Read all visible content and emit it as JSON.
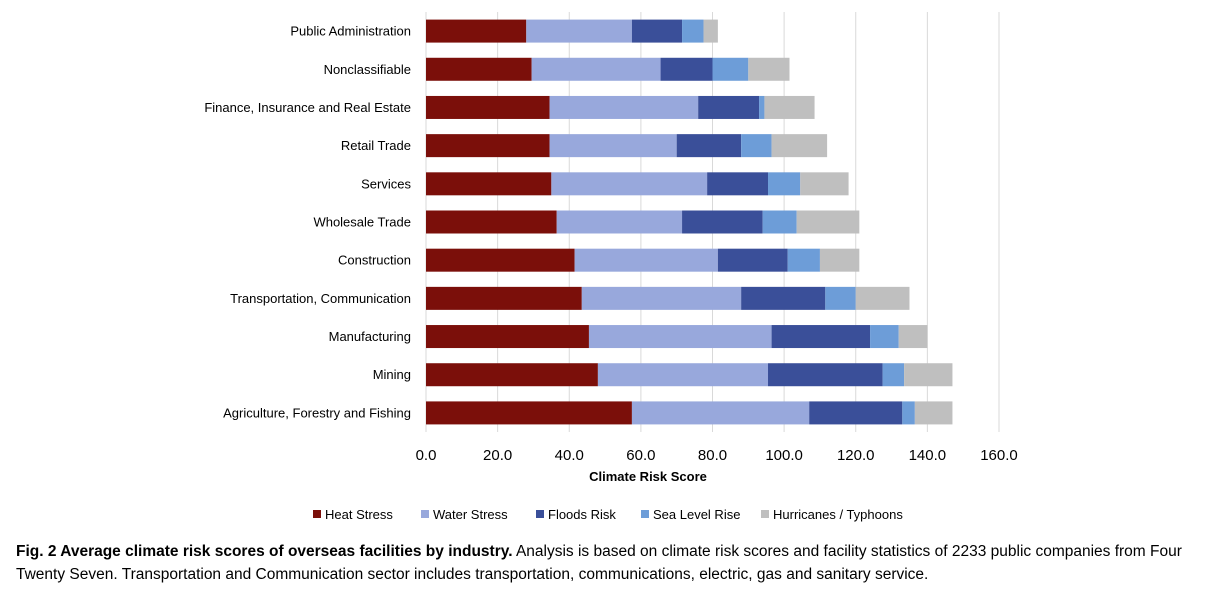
{
  "chart_data": {
    "type": "bar",
    "orientation": "horizontal",
    "stacked": true,
    "categories": [
      "Public Administration",
      "Nonclassifiable",
      "Finance, Insurance and Real Estate",
      "Retail Trade",
      "Services",
      "Wholesale Trade",
      "Construction",
      "Transportation, Communication",
      "Manufacturing",
      "Mining",
      "Agriculture, Forestry and Fishing"
    ],
    "series": [
      {
        "name": "Heat Stress",
        "color": "#7b0f0a",
        "values": [
          28.0,
          29.5,
          34.5,
          34.5,
          35.0,
          36.5,
          41.5,
          43.5,
          45.5,
          48.0,
          57.5
        ]
      },
      {
        "name": "Water Stress",
        "color": "#98a8dc",
        "values": [
          29.5,
          36.0,
          41.5,
          35.5,
          43.5,
          35.0,
          40.0,
          44.5,
          51.0,
          47.5,
          49.5
        ]
      },
      {
        "name": "Floods Risk",
        "color": "#3a4f99",
        "values": [
          14.0,
          14.5,
          17.0,
          18.0,
          17.0,
          22.5,
          19.5,
          23.5,
          27.5,
          32.0,
          26.0
        ]
      },
      {
        "name": "Sea Level Rise",
        "color": "#6d9dd8",
        "values": [
          6.0,
          10.0,
          1.5,
          8.5,
          9.0,
          9.5,
          9.0,
          8.5,
          8.0,
          6.0,
          3.5
        ]
      },
      {
        "name": "Hurricanes / Typhoons",
        "color": "#bfbfbf",
        "values": [
          4.0,
          11.5,
          14.0,
          15.5,
          13.5,
          17.5,
          11.0,
          15.0,
          8.0,
          13.5,
          10.5
        ]
      }
    ],
    "xlabel": "Climate Risk Score",
    "xlim": [
      0,
      160
    ],
    "xticks": [
      "0.0",
      "20.0",
      "40.0",
      "60.0",
      "80.0",
      "100.0",
      "120.0",
      "140.0",
      "160.0"
    ],
    "grid": true,
    "legend_position": "bottom"
  },
  "caption": {
    "label": "Fig. 2 Average climate risk scores of overseas facilities by industry.",
    "text": " Analysis is based on climate risk scores and facility statistics of 2233 public companies from Four Twenty Seven. Transportation and Communication sector includes transportation, communications, electric, gas and sanitary service."
  }
}
